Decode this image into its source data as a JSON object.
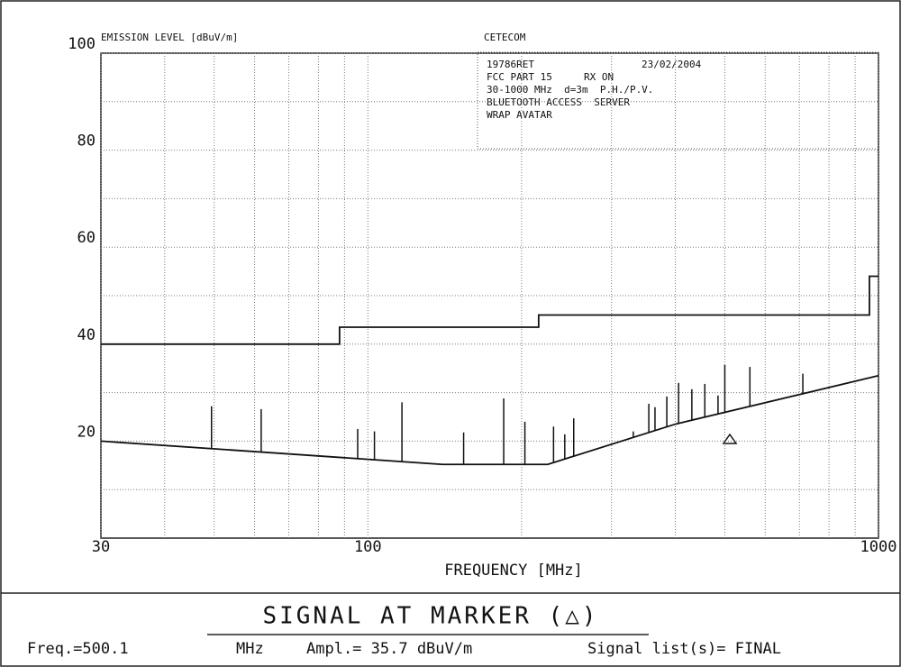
{
  "chart_data": {
    "type": "line",
    "title": "CETECOM",
    "y_label": "EMISSION LEVEL [dBuV/m]",
    "x_label": "FREQUENCY [MHz]",
    "annotations": [
      "19786RET",
      "23/02/2004",
      "FCC PART 15",
      "RX ON",
      "30-1000 MHz  d=3m  P.H./P.V.",
      "BLUETOOTH ACCESS  SERVER",
      "WRAP AVATAR"
    ],
    "x_log": true,
    "xlim": [
      30,
      1000
    ],
    "xticks": [
      30,
      100,
      1000
    ],
    "xgrid": [
      40,
      50,
      60,
      70,
      80,
      90,
      200,
      300,
      400,
      500,
      600,
      700,
      800,
      900
    ],
    "ylim": [
      0,
      100
    ],
    "yticks": [
      20,
      40,
      60,
      80,
      100
    ],
    "ygrid": [
      10,
      30,
      50,
      70,
      90
    ],
    "grid": true,
    "series": [
      {
        "name": "limit",
        "color": "#111111",
        "x": [
          30,
          88,
          88,
          216,
          216,
          960,
          960,
          1000
        ],
        "values": [
          40,
          40,
          43.5,
          43.5,
          46,
          46,
          54,
          54
        ]
      },
      {
        "name": "noise floor",
        "color": "#111111",
        "x": [
          30,
          140,
          225,
          400,
          1000
        ],
        "values": [
          20,
          15.2,
          15.2,
          23.5,
          33.5
        ]
      }
    ],
    "spikes": {
      "color": "#111111",
      "x": [
        49.4,
        61.8,
        95.5,
        103,
        116.6,
        154,
        184.5,
        203,
        231,
        243,
        253,
        331,
        355,
        365,
        385,
        406,
        431,
        457,
        485,
        500.1,
        560,
        711
      ],
      "values": [
        27.2,
        26.6,
        22.5,
        22,
        28,
        21.8,
        28.8,
        24,
        23,
        21.4,
        24.7,
        22,
        27.7,
        27,
        29.2,
        32,
        30.7,
        31.8,
        29.4,
        35.7,
        35.3,
        33.9
      ]
    }
  },
  "marker_panel": {
    "title": "SIGNAL AT MARKER (△)",
    "freq": "Freq.=500.1",
    "freq_unit": "MHz",
    "ampl": "Ampl.= 35.7 dBuV/m",
    "signal_list": "Signal list(s)= FINAL"
  }
}
